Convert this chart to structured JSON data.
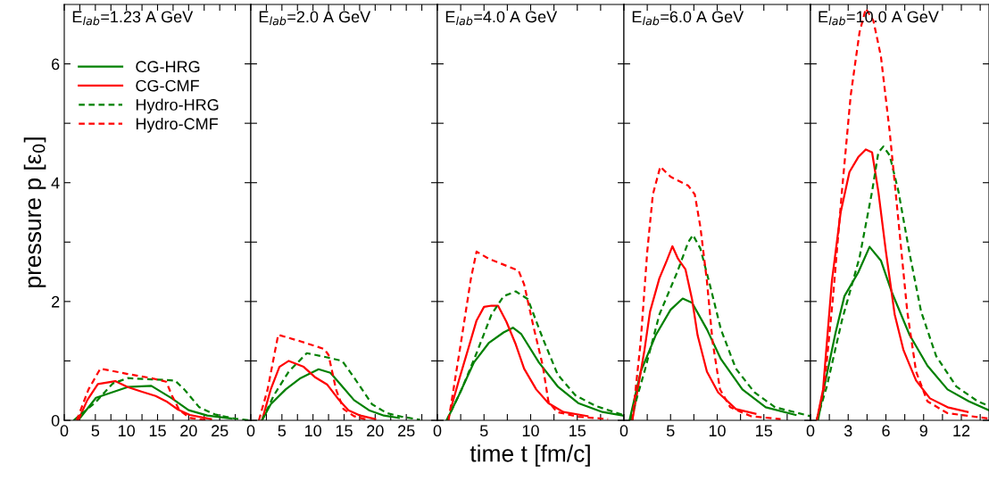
{
  "chart_data": [
    {
      "type": "line",
      "title": "E$_{lab}$=1.23 A GeV",
      "ylabel": "pressure p [ε$_{0}$]",
      "xlim": [
        0,
        30
      ],
      "ylim": [
        0,
        7
      ],
      "xticks": [
        0,
        {
          "value": 2.5,
          "label": null
        },
        5,
        {
          "value": 7.5,
          "label": null
        },
        10,
        {
          "value": 12.5,
          "label": null
        },
        15,
        {
          "value": 17.5,
          "label": null
        },
        20,
        {
          "value": 22.5,
          "label": null
        },
        25,
        {
          "value": 27.5,
          "label": null
        }
      ],
      "yticks": [
        0,
        {
          "value": 1,
          "label": null
        },
        2,
        {
          "value": 3,
          "label": null
        },
        4,
        {
          "value": 5,
          "label": null
        },
        6
      ],
      "legend": "top left",
      "grid": false,
      "series": [
        {
          "name": "CG-HRG",
          "color": "#008000",
          "line_style": "solid",
          "x": [
            2.25,
            5.1,
            10.2,
            14,
            17.3,
            20,
            23,
            26.9
          ],
          "values": [
            0,
            0.38,
            0.56,
            0.58,
            0.37,
            0.17,
            0.08,
            0.03
          ]
        },
        {
          "name": "CG-CMF",
          "color": "#ff0000",
          "line_style": "solid",
          "x": [
            2.25,
            3.7,
            5.4,
            8.2,
            10.2,
            12.5,
            14.7,
            16.4,
            18.3,
            20.2,
            23.6
          ],
          "values": [
            0,
            0.34,
            0.61,
            0.66,
            0.56,
            0.48,
            0.41,
            0.32,
            0.18,
            0.09,
            0.02
          ]
        },
        {
          "name": "Hydro-HRG",
          "color": "#008000",
          "line_style": "dashed",
          "x": [
            1.5,
            4.9,
            7.8,
            10.2,
            14,
            17.8,
            19.3,
            21.7,
            24.2,
            27.4,
            29.8
          ],
          "values": [
            0,
            0.29,
            0.62,
            0.71,
            0.69,
            0.67,
            0.52,
            0.22,
            0.1,
            0.03,
            0
          ]
        },
        {
          "name": "Hydro-CMF",
          "color": "#ff0000",
          "line_style": "dashed",
          "x": [
            2,
            3.9,
            5.8,
            10.2,
            14,
            16.4,
            17.3,
            18.5,
            20.2,
            23
          ],
          "values": [
            0,
            0.52,
            0.87,
            0.78,
            0.71,
            0.65,
            0.42,
            0.17,
            0.04,
            0
          ]
        }
      ]
    },
    {
      "type": "line",
      "title": "E$_{lab}$=2.0 A GeV",
      "xlim": [
        0,
        30
      ],
      "ylim": [
        0,
        7
      ],
      "tick_labels": "x",
      "xticks": [
        0,
        {
          "value": 2.5,
          "label": null
        },
        5,
        {
          "value": 7.5,
          "label": null
        },
        10,
        {
          "value": 12.5,
          "label": null
        },
        15,
        {
          "value": 17.5,
          "label": null
        },
        20,
        {
          "value": 22.5,
          "label": null
        },
        25,
        {
          "value": 27.5,
          "label": null
        }
      ],
      "yticks": [
        0,
        {
          "value": 1,
          "label": null
        },
        2,
        {
          "value": 3,
          "label": null
        },
        4,
        {
          "value": 5,
          "label": null
        },
        6
      ],
      "grid": false,
      "series": [
        {
          "color": "#008000",
          "line_style": "solid",
          "x": [
            1.8,
            3.2,
            5.6,
            8,
            10.9,
            12.8,
            14.7,
            16.6,
            19,
            21.4,
            23.8
          ],
          "values": [
            0,
            0.27,
            0.52,
            0.71,
            0.86,
            0.8,
            0.57,
            0.34,
            0.17,
            0.08,
            0.04
          ]
        },
        {
          "color": "#ff0000",
          "line_style": "solid",
          "x": [
            1.8,
            3.2,
            4.6,
            6.1,
            8.5,
            10.4,
            12.3,
            14.2,
            15.7,
            17.6,
            20
          ],
          "values": [
            0,
            0.52,
            0.9,
            1.0,
            0.9,
            0.72,
            0.6,
            0.34,
            0.17,
            0.08,
            0.02
          ]
        },
        {
          "color": "#008000",
          "line_style": "dashed",
          "x": [
            1.8,
            3.7,
            6.1,
            9,
            11.8,
            14.7,
            16.6,
            19.5,
            21.9,
            24.3,
            27.2
          ],
          "values": [
            0,
            0.42,
            0.82,
            1.13,
            1.07,
            1.0,
            0.72,
            0.27,
            0.12,
            0.06,
            0.01
          ]
        },
        {
          "color": "#ff0000",
          "line_style": "dashed",
          "x": [
            1.3,
            2.7,
            4.4,
            8,
            11.8,
            12.5,
            13.7,
            14.9,
            16.6,
            19
          ],
          "values": [
            0,
            0.52,
            1.44,
            1.33,
            1.2,
            1.1,
            0.52,
            0.19,
            0.07,
            0
          ]
        }
      ]
    },
    {
      "type": "line",
      "title": "E$_{lab}$=4.0 A GeV",
      "xlabel": "time t [fm/c]",
      "xlim": [
        0,
        20
      ],
      "ylim": [
        0,
        7
      ],
      "tick_labels": "x",
      "xticks": [
        0,
        {
          "value": 2.5,
          "label": null
        },
        5,
        {
          "value": 7.5,
          "label": null
        },
        10,
        {
          "value": 12.5,
          "label": null
        },
        15,
        {
          "value": 17.5,
          "label": null
        }
      ],
      "yticks": [
        0,
        {
          "value": 1,
          "label": null
        },
        2,
        {
          "value": 3,
          "label": null
        },
        4,
        {
          "value": 5,
          "label": null
        },
        6
      ],
      "grid": false,
      "series": [
        {
          "color": "#008000",
          "line_style": "solid",
          "x": [
            1,
            2.3,
            3.9,
            5.5,
            7.1,
            8.1,
            9,
            10.9,
            12.9,
            15.1,
            17.7,
            19.9
          ],
          "values": [
            0,
            0.42,
            0.97,
            1.3,
            1.48,
            1.56,
            1.45,
            0.97,
            0.57,
            0.29,
            0.14,
            0.08
          ]
        },
        {
          "color": "#ff0000",
          "line_style": "solid",
          "x": [
            1.4,
            2.3,
            3.3,
            4.2,
            5,
            5.8,
            6.5,
            7.4,
            8.4,
            9.3,
            10.6,
            11.9,
            13.5,
            16.1
          ],
          "values": [
            0.17,
            0.67,
            1.2,
            1.68,
            1.91,
            1.93,
            1.93,
            1.66,
            1.28,
            0.87,
            0.52,
            0.29,
            0.14,
            0.07
          ]
        },
        {
          "color": "#008000",
          "line_style": "dashed",
          "x": [
            1,
            2.6,
            4.2,
            5.8,
            7.1,
            8.4,
            9.7,
            11.3,
            12.9,
            14.8,
            17,
            19.9
          ],
          "values": [
            0,
            0.52,
            1.13,
            1.78,
            2.09,
            2.17,
            2.04,
            1.38,
            0.77,
            0.42,
            0.24,
            0.09
          ]
        },
        {
          "color": "#ff0000",
          "line_style": "dashed",
          "x": [
            1.2,
            2.6,
            3.6,
            4.2,
            5.5,
            8.7,
            9.3,
            10.3,
            11.3,
            11.9,
            12.8,
            15.1,
            18.3
          ],
          "values": [
            0,
            1.38,
            2.39,
            2.84,
            2.72,
            2.52,
            2.29,
            1.58,
            0.92,
            0.32,
            0.14,
            0.06,
            0.02
          ]
        }
      ]
    },
    {
      "type": "line",
      "title": "E$_{lab}$=6.0 A GeV",
      "xlim": [
        0,
        20
      ],
      "ylim": [
        0,
        7
      ],
      "tick_labels": "x",
      "xticks": [
        0,
        {
          "value": 2.5,
          "label": null
        },
        5,
        {
          "value": 7.5,
          "label": null
        },
        10,
        {
          "value": 12.5,
          "label": null
        },
        15,
        {
          "value": 17.5,
          "label": null
        }
      ],
      "yticks": [
        0,
        {
          "value": 1,
          "label": null
        },
        2,
        {
          "value": 3,
          "label": null
        },
        4,
        {
          "value": 5,
          "label": null
        },
        6
      ],
      "grid": false,
      "series": [
        {
          "color": "#008000",
          "line_style": "solid",
          "x": [
            0.6,
            1.8,
            3.4,
            5,
            6.3,
            7.3,
            8.9,
            10.4,
            12.7,
            15.2,
            18.4
          ],
          "values": [
            0,
            0.82,
            1.43,
            1.86,
            2.05,
            1.98,
            1.53,
            1.03,
            0.52,
            0.22,
            0.09
          ]
        },
        {
          "color": "#ff0000",
          "line_style": "solid",
          "x": [
            0.9,
            1.2,
            2.2,
            2.8,
            3.8,
            4.6,
            5.2,
            5.8,
            6.6,
            7.3,
            7.9,
            8.9,
            10.1,
            12,
            14.1
          ],
          "values": [
            0,
            0.27,
            1.18,
            1.83,
            2.39,
            2.69,
            2.93,
            2.72,
            2.54,
            2.04,
            1.43,
            0.82,
            0.47,
            0.19,
            0.11
          ]
        },
        {
          "color": "#008000",
          "line_style": "dashed",
          "x": [
            0.7,
            2.2,
            3.8,
            5.7,
            6.9,
            7.4,
            8.2,
            9.2,
            10.4,
            12,
            14,
            16.2,
            20
          ],
          "values": [
            0,
            0.82,
            1.78,
            2.49,
            3.0,
            3.12,
            2.89,
            2.29,
            1.53,
            0.87,
            0.47,
            0.22,
            0.07
          ]
        },
        {
          "color": "#ff0000",
          "line_style": "dashed",
          "x": [
            0.9,
            1.8,
            2.5,
            3.1,
            3.9,
            5,
            6.9,
            7.6,
            8.2,
            8.9,
            9.5,
            10.3,
            11.4,
            13.6,
            16.8
          ],
          "values": [
            0,
            1.33,
            2.84,
            3.8,
            4.27,
            4.1,
            3.95,
            3.8,
            3.25,
            2.34,
            1.33,
            0.52,
            0.22,
            0.07,
            0.02
          ]
        }
      ]
    },
    {
      "type": "line",
      "title": "E$_{lab}$=10.0 A GeV",
      "xlim": [
        0,
        14.2
      ],
      "ylim": [
        0,
        7
      ],
      "tick_labels": "x",
      "xticks": [
        0,
        {
          "value": 1.5,
          "label": null
        },
        3,
        {
          "value": 4.5,
          "label": null
        },
        6,
        {
          "value": 7.5,
          "label": null
        },
        9,
        {
          "value": 10.5,
          "label": null
        },
        12,
        {
          "value": 13.5,
          "label": null
        }
      ],
      "yticks": [
        0,
        {
          "value": 1,
          "label": null
        },
        2,
        {
          "value": 3,
          "label": null
        },
        4,
        {
          "value": 5,
          "label": null
        },
        6
      ],
      "grid": false,
      "series": [
        {
          "color": "#008000",
          "line_style": "solid",
          "x": [
            0.6,
            1.1,
            2,
            2.7,
            3.8,
            4.7,
            5.6,
            6.5,
            7.9,
            9.3,
            10.9,
            12.6,
            14.2
          ],
          "values": [
            0,
            0.57,
            1.48,
            2.09,
            2.49,
            2.92,
            2.69,
            2.14,
            1.43,
            0.92,
            0.52,
            0.32,
            0.17
          ]
        },
        {
          "color": "#ff0000",
          "line_style": "solid",
          "x": [
            0.5,
            1,
            1.7,
            2.4,
            3.1,
            3.8,
            4.4,
            4.9,
            5.4,
            6,
            6.7,
            7.4,
            8.4,
            9.5,
            10.9,
            12.5
          ],
          "values": [
            0,
            0.52,
            2.34,
            3.5,
            4.18,
            4.43,
            4.56,
            4.51,
            3.85,
            2.84,
            1.78,
            1.18,
            0.67,
            0.37,
            0.22,
            0.14
          ]
        },
        {
          "color": "#008000",
          "line_style": "dashed",
          "x": [
            0.5,
            1.3,
            2.5,
            3.9,
            4.9,
            5.4,
            5.8,
            6.3,
            7,
            7.9,
            8.8,
            10,
            11.6,
            13.3,
            14.2
          ],
          "values": [
            0,
            0.57,
            1.68,
            2.74,
            3.85,
            4.51,
            4.61,
            4.46,
            3.85,
            2.79,
            1.83,
            1.08,
            0.57,
            0.32,
            0.24
          ]
        },
        {
          "color": "#ff0000",
          "line_style": "dashed",
          "x": [
            0.5,
            1.1,
            1.8,
            2.5,
            3.2,
            3.9,
            4.4,
            5,
            5.6,
            6.3,
            7,
            7.7,
            8.4,
            9.3,
            10.9,
            14.2
          ],
          "values": [
            0,
            0.57,
            2.09,
            3.85,
            5.47,
            6.53,
            6.93,
            6.73,
            6.13,
            4.86,
            3.35,
            1.83,
            0.82,
            0.32,
            0.12,
            0.03
          ]
        }
      ]
    }
  ]
}
